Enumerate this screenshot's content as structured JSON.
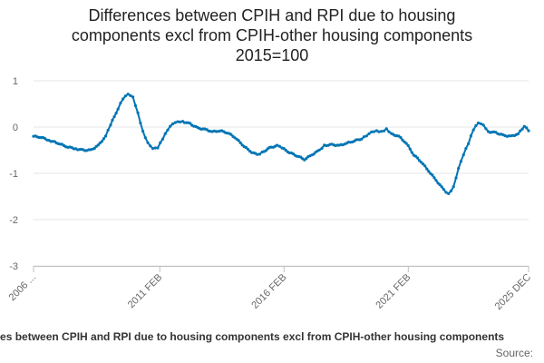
{
  "chart_data": {
    "type": "line",
    "title_lines": [
      "Differences between CPIH and RPI due to housing",
      "components excl from CPIH-other housing components",
      "2015=100"
    ],
    "y_ticks": [
      "1",
      "0",
      "-1",
      "-2",
      "-3"
    ],
    "y_tick_values": [
      1,
      0,
      -1,
      -2,
      -3
    ],
    "ylim": [
      -3,
      1
    ],
    "x_ticks": [
      "2006 ...",
      "2011 FEB",
      "2016 FEB",
      "2021 FEB",
      "2025 DEC"
    ],
    "x_tick_years": [
      2006.0,
      2011.08,
      2016.08,
      2021.08,
      2025.92
    ],
    "xlim": [
      2006.0,
      2025.92
    ],
    "series": [
      {
        "name": "Differences between CPIH and RPI due to housing components excl from CPIH-other housing components",
        "color": "#0075b4",
        "points": [
          [
            2006.0,
            -0.2
          ],
          [
            2006.3,
            -0.22
          ],
          [
            2006.7,
            -0.3
          ],
          [
            2007.0,
            -0.35
          ],
          [
            2007.3,
            -0.42
          ],
          [
            2007.7,
            -0.47
          ],
          [
            2008.0,
            -0.5
          ],
          [
            2008.3,
            -0.5
          ],
          [
            2008.6,
            -0.4
          ],
          [
            2008.9,
            -0.2
          ],
          [
            2009.1,
            0.05
          ],
          [
            2009.4,
            0.4
          ],
          [
            2009.6,
            0.62
          ],
          [
            2009.8,
            0.72
          ],
          [
            2010.0,
            0.65
          ],
          [
            2010.2,
            0.3
          ],
          [
            2010.4,
            -0.1
          ],
          [
            2010.6,
            -0.35
          ],
          [
            2010.8,
            -0.47
          ],
          [
            2011.0,
            -0.45
          ],
          [
            2011.2,
            -0.25
          ],
          [
            2011.4,
            -0.05
          ],
          [
            2011.6,
            0.08
          ],
          [
            2011.8,
            0.12
          ],
          [
            2012.0,
            0.12
          ],
          [
            2012.3,
            0.07
          ],
          [
            2012.6,
            -0.02
          ],
          [
            2012.9,
            -0.05
          ],
          [
            2013.2,
            -0.1
          ],
          [
            2013.5,
            -0.08
          ],
          [
            2013.8,
            -0.12
          ],
          [
            2014.1,
            -0.22
          ],
          [
            2014.4,
            -0.38
          ],
          [
            2014.7,
            -0.52
          ],
          [
            2015.0,
            -0.6
          ],
          [
            2015.2,
            -0.55
          ],
          [
            2015.5,
            -0.45
          ],
          [
            2015.8,
            -0.4
          ],
          [
            2016.0,
            -0.45
          ],
          [
            2016.3,
            -0.55
          ],
          [
            2016.6,
            -0.62
          ],
          [
            2016.9,
            -0.7
          ],
          [
            2017.2,
            -0.6
          ],
          [
            2017.5,
            -0.5
          ],
          [
            2017.7,
            -0.4
          ],
          [
            2018.0,
            -0.38
          ],
          [
            2018.3,
            -0.4
          ],
          [
            2018.6,
            -0.35
          ],
          [
            2018.9,
            -0.3
          ],
          [
            2019.2,
            -0.25
          ],
          [
            2019.4,
            -0.18
          ],
          [
            2019.6,
            -0.1
          ],
          [
            2019.8,
            -0.08
          ],
          [
            2020.0,
            -0.1
          ],
          [
            2020.2,
            -0.05
          ],
          [
            2020.4,
            -0.15
          ],
          [
            2020.7,
            -0.2
          ],
          [
            2021.0,
            -0.35
          ],
          [
            2021.3,
            -0.6
          ],
          [
            2021.6,
            -0.75
          ],
          [
            2021.9,
            -0.95
          ],
          [
            2022.2,
            -1.15
          ],
          [
            2022.5,
            -1.35
          ],
          [
            2022.7,
            -1.45
          ],
          [
            2022.9,
            -1.3
          ],
          [
            2023.1,
            -0.9
          ],
          [
            2023.3,
            -0.6
          ],
          [
            2023.5,
            -0.35
          ],
          [
            2023.7,
            -0.05
          ],
          [
            2023.9,
            0.1
          ],
          [
            2024.1,
            0.05
          ],
          [
            2024.3,
            -0.1
          ],
          [
            2024.6,
            -0.12
          ],
          [
            2024.9,
            -0.18
          ],
          [
            2025.2,
            -0.2
          ],
          [
            2025.5,
            -0.15
          ],
          [
            2025.75,
            0.02
          ],
          [
            2025.92,
            -0.08
          ]
        ]
      }
    ]
  },
  "legend": {
    "label": "Differences between CPIH and RPI due to housing components excl from CPIH-other housing components"
  },
  "source": {
    "label": "Source:"
  }
}
